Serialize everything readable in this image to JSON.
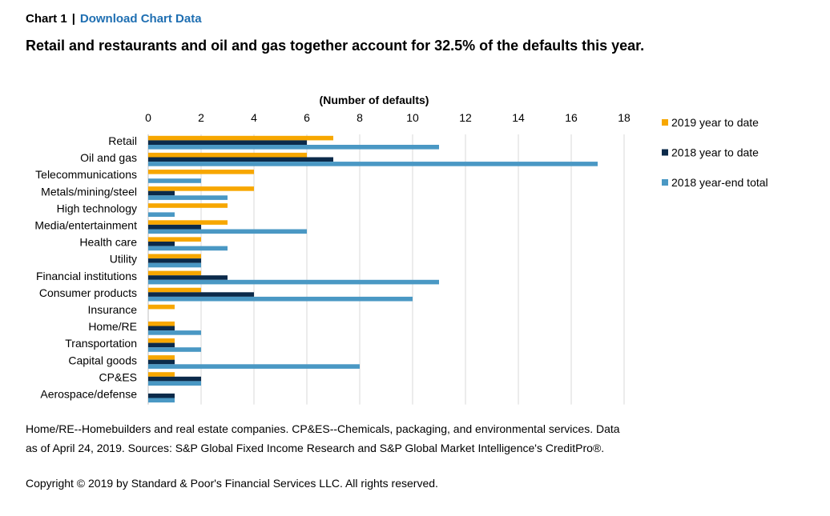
{
  "header": {
    "chart_label": "Chart 1",
    "separator": "|",
    "download_link": "Download Chart Data"
  },
  "title": "Retail and restaurants and oil and gas together account for 32.5% of the defaults this year.",
  "footnote": "Home/RE--Homebuilders and real estate companies. CP&ES--Chemicals, packaging, and environmental services. Data as of April 24, 2019. Sources: S&P Global Fixed Income Research and S&P Global Market Intelligence's CreditPro®.",
  "copyright": "Copyright © 2019 by Standard & Poor's Financial Services LLC. All rights reserved.",
  "chart_data": {
    "type": "bar",
    "orientation": "horizontal",
    "xlabel": "(Number of defaults)",
    "xlim": [
      0,
      18
    ],
    "xticks": [
      0,
      2,
      4,
      6,
      8,
      10,
      12,
      14,
      16,
      18
    ],
    "grid": true,
    "legend_position": "right",
    "categories": [
      "Retail",
      "Oil and gas",
      "Telecommunications",
      "Metals/mining/steel",
      "High technology",
      "Media/entertainment",
      "Health care",
      "Utility",
      "Financial institutions",
      "Consumer products",
      "Insurance",
      "Home/RE",
      "Transportation",
      "Capital goods",
      "CP&ES",
      "Aerospace/defense"
    ],
    "series": [
      {
        "name": "2019 year to date",
        "color": "#f7a700",
        "values": [
          7,
          6,
          4,
          4,
          3,
          3,
          2,
          2,
          2,
          2,
          1,
          1,
          1,
          1,
          1,
          0
        ]
      },
      {
        "name": "2018 year to date",
        "color": "#0b2a4a",
        "values": [
          6,
          7,
          0,
          1,
          0,
          2,
          1,
          2,
          3,
          4,
          0,
          1,
          1,
          1,
          2,
          1
        ]
      },
      {
        "name": "2018 year-end total",
        "color": "#4a98c4",
        "values": [
          11,
          17,
          2,
          3,
          1,
          6,
          3,
          2,
          11,
          10,
          0,
          2,
          2,
          8,
          2,
          1
        ]
      }
    ]
  }
}
